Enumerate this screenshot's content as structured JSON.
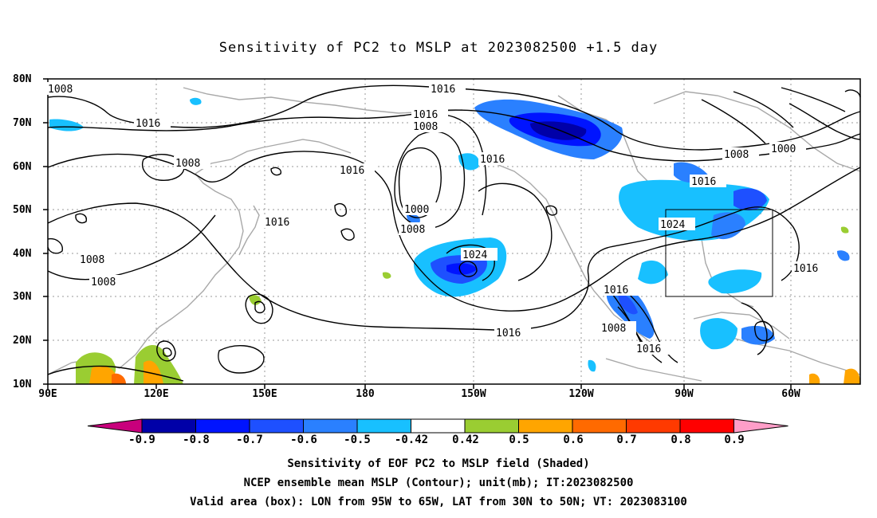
{
  "title": "Sensitivity of PC2 to MSLP at 2023082500 +1.5 day",
  "lat_labels": [
    "80N",
    "70N",
    "60N",
    "50N",
    "40N",
    "30N",
    "20N",
    "10N"
  ],
  "lon_labels": [
    "90E",
    "120E",
    "150E",
    "180",
    "150W",
    "120W",
    "90W",
    "60W"
  ],
  "colorbar": {
    "labels": [
      "-0.9",
      "-0.8",
      "-0.7",
      "-0.6",
      "-0.5",
      "-0.42",
      "0.42",
      "0.5",
      "0.6",
      "0.7",
      "0.8",
      "0.9"
    ],
    "colors": [
      "#c8007c",
      "#0000a8",
      "#0014ff",
      "#1e50ff",
      "#2a80ff",
      "#18c0ff",
      "#ffffff",
      "#9acd32",
      "#ffa500",
      "#ff6a00",
      "#ff3a00",
      "#ff0000",
      "#ff9ec8"
    ]
  },
  "contour_labels": [
    "1008",
    "1016",
    "1008",
    "1016",
    "1016",
    "1016",
    "1016",
    "1008",
    "1000",
    "1008",
    "1008",
    "1008",
    "1016",
    "1024",
    "1016",
    "1016",
    "1016",
    "1024",
    "1016",
    "1016",
    "1008",
    "1016",
    "1008",
    "1000"
  ],
  "valid_box": {
    "lon_range": [
      "95W",
      "65W"
    ],
    "lat_range": [
      "30N",
      "50N"
    ]
  },
  "captions": [
    "Sensitivity of EOF PC2 to MSLP field (Shaded)",
    "NCEP ensemble mean MSLP (Contour); unit(mb); IT:2023082500",
    "Valid area (box): LON from 95W to 65W, LAT from 30N to 50N; VT: 2023083100"
  ]
}
